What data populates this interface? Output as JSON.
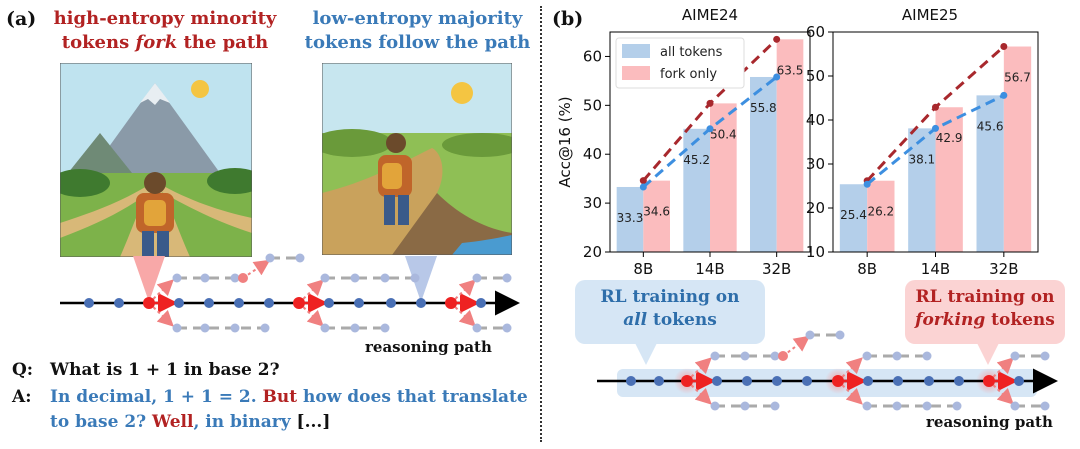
{
  "panel_a": {
    "label": "(a)",
    "left_title_line1": "high-entropy minority",
    "left_title_line2_pre": "tokens ",
    "left_title_fork": "fork",
    "left_title_line2_post": " the path",
    "right_title_line1": "low-entropy majority",
    "right_title_line2": "tokens follow the path",
    "path_label": "reasoning path",
    "q_prefix": "Q:",
    "q_text": "What is 1 + 1 in base 2?",
    "a_prefix": "A:",
    "a_seg1": "In decimal, 1 + 1 = 2.",
    "a_seg2": "But",
    "a_seg3": "how does that translate",
    "a_seg4": "to base 2?",
    "a_seg5": "Well",
    "a_seg6": ", in binary",
    "a_seg7": "[...]"
  },
  "panel_b": {
    "label": "(b)",
    "rl_all_line1": "RL training on",
    "rl_all_line2": "all",
    "rl_all_line3": " tokens",
    "rl_fork_line1": "RL training on",
    "rl_fork_line2": "forking",
    "rl_fork_line3": " tokens",
    "path_label": "reasoning path"
  },
  "colors": {
    "blue_bar": "#b4cfea",
    "pink_bar": "#fbbcbe",
    "blue_line": "#3d8fe0",
    "red_line": "#a8282d",
    "node_blue": "#4a70b5",
    "node_red": "#ee2222",
    "title_red": "#b22222",
    "title_blue": "#3a7ab8"
  },
  "chart_data": [
    {
      "type": "bar",
      "title": "AIME24",
      "ylabel": "Acc@16 (%)",
      "categories": [
        "8B",
        "14B",
        "32B"
      ],
      "ylim": [
        20,
        65
      ],
      "yticks": [
        20,
        30,
        40,
        50,
        60
      ],
      "legend": "top-left",
      "series": [
        {
          "name": "all tokens",
          "values": [
            33.3,
            45.2,
            55.8
          ]
        },
        {
          "name": "fork only",
          "values": [
            34.6,
            50.4,
            63.5
          ]
        }
      ]
    },
    {
      "type": "bar",
      "title": "AIME25",
      "ylabel": "",
      "categories": [
        "8B",
        "14B",
        "32B"
      ],
      "ylim": [
        10,
        60
      ],
      "yticks": [
        10,
        20,
        30,
        40,
        50,
        60
      ],
      "series": [
        {
          "name": "all tokens",
          "values": [
            25.4,
            38.1,
            45.6
          ]
        },
        {
          "name": "fork only",
          "values": [
            26.2,
            42.9,
            56.7
          ]
        }
      ]
    }
  ]
}
